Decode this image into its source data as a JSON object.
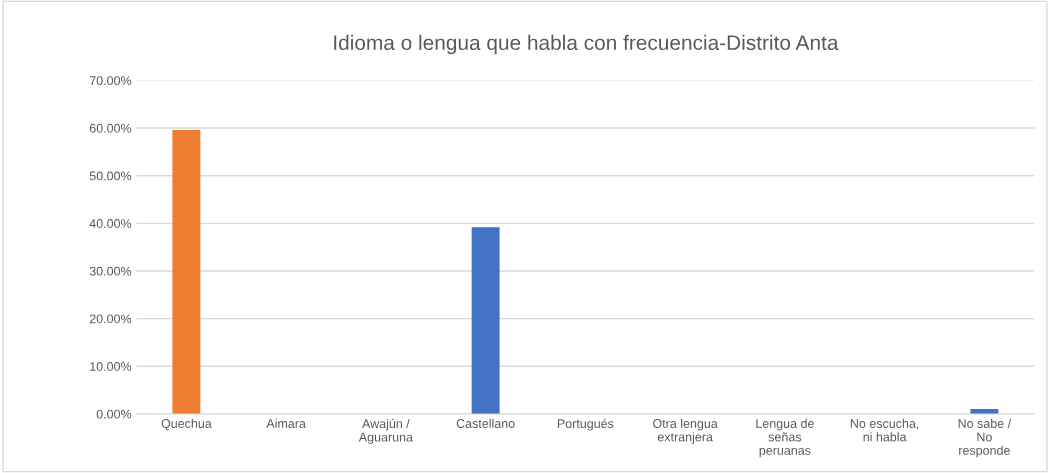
{
  "chart_data": {
    "type": "bar",
    "title": "Idioma o lengua que habla con frecuencia-Distrito Anta",
    "categories": [
      "Quechua",
      "Aimara",
      "Awajún /\nAguaruna",
      "Castellano",
      "Portugués",
      "Otra lengua\nextranjera",
      "Lengua de\nseñas\nperuanas",
      "No escucha,\nni habla",
      "No sabe /\nNo\nresponde"
    ],
    "values": [
      59.6,
      0,
      0,
      39.2,
      0,
      0,
      0,
      0,
      1.0
    ],
    "colors": [
      "#ed7d31",
      "#4472c4",
      "#4472c4",
      "#4472c4",
      "#4472c4",
      "#4472c4",
      "#4472c4",
      "#4472c4",
      "#4472c4"
    ],
    "ylim": [
      0,
      70
    ],
    "yticks": [
      {
        "value": 0,
        "label": "0.00%"
      },
      {
        "value": 10,
        "label": "10.00%"
      },
      {
        "value": 20,
        "label": "20.00%"
      },
      {
        "value": 30,
        "label": "30.00%"
      },
      {
        "value": 40,
        "label": "40.00%"
      },
      {
        "value": 50,
        "label": "50.00%"
      },
      {
        "value": 60,
        "label": "60.00%"
      },
      {
        "value": 70,
        "label": "70.00%"
      }
    ],
    "grid": "y"
  }
}
